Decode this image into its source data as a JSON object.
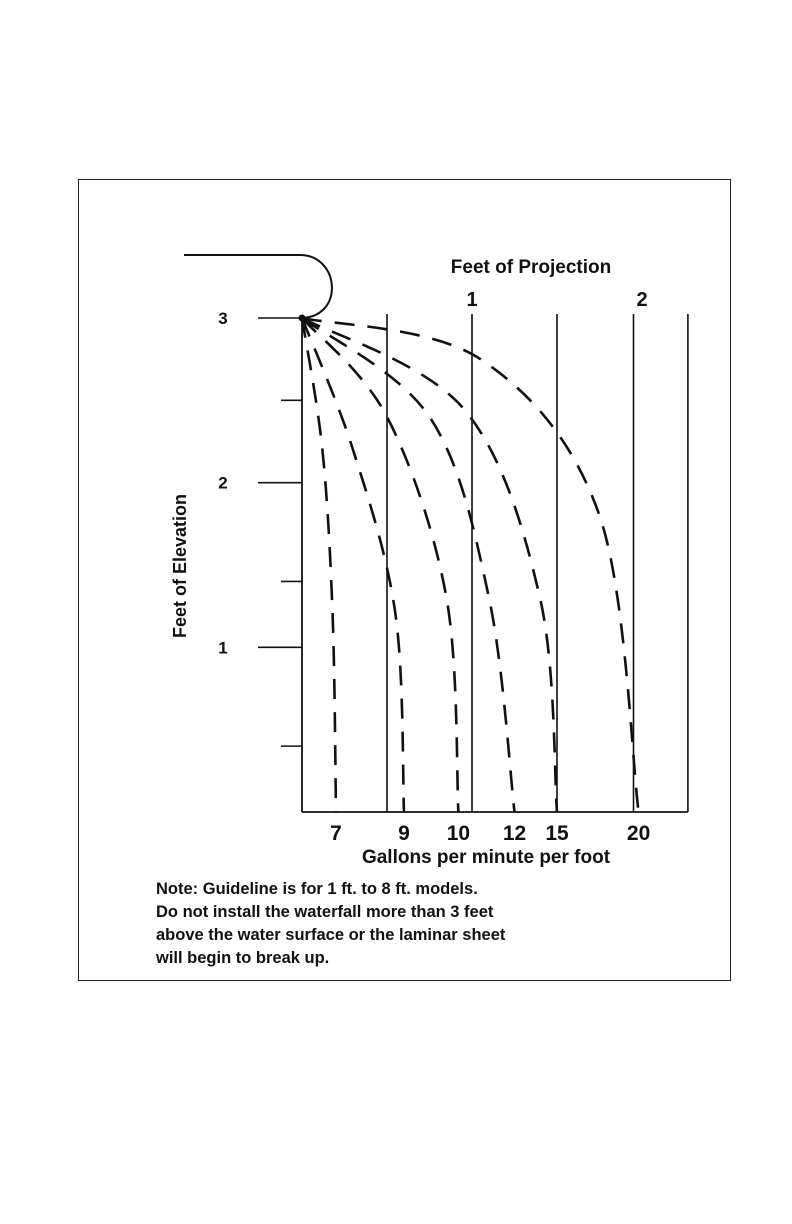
{
  "chart_data": {
    "type": "line",
    "top_label": "Feet of Projection",
    "xlabel": "Gallons per minute per foot",
    "ylabel": "Feet of Elevation",
    "y_ticks": [
      "1",
      "2",
      "3"
    ],
    "x_ticks": [
      "1",
      "2"
    ],
    "ylim": [
      0,
      3
    ],
    "xlim": [
      0,
      2.3
    ],
    "series": [
      {
        "name": "7",
        "points": [
          [
            0,
            3
          ],
          [
            0.12,
            2.2
          ],
          [
            0.18,
            1.2
          ],
          [
            0.2,
            0
          ]
        ]
      },
      {
        "name": "9",
        "points": [
          [
            0,
            3
          ],
          [
            0.3,
            2.2
          ],
          [
            0.55,
            1.2
          ],
          [
            0.6,
            0
          ]
        ]
      },
      {
        "name": "10",
        "points": [
          [
            0,
            3
          ],
          [
            0.5,
            2.4
          ],
          [
            0.85,
            1.3
          ],
          [
            0.92,
            0
          ]
        ]
      },
      {
        "name": "12",
        "points": [
          [
            0,
            3
          ],
          [
            0.75,
            2.4
          ],
          [
            1.1,
            1.3
          ],
          [
            1.25,
            0
          ]
        ]
      },
      {
        "name": "15",
        "points": [
          [
            0,
            3
          ],
          [
            0.95,
            2.45
          ],
          [
            1.4,
            1.3
          ],
          [
            1.5,
            0
          ]
        ]
      },
      {
        "name": "20",
        "points": [
          [
            0,
            3
          ],
          [
            1.05,
            2.75
          ],
          [
            1.75,
            1.8
          ],
          [
            1.98,
            0
          ]
        ]
      }
    ]
  },
  "note": {
    "lines": [
      "Note: Guideline is for 1 ft. to 8 ft. models.",
      "Do not install the waterfall more than 3 feet",
      "above the water surface or the laminar sheet",
      "will begin to break up."
    ]
  }
}
